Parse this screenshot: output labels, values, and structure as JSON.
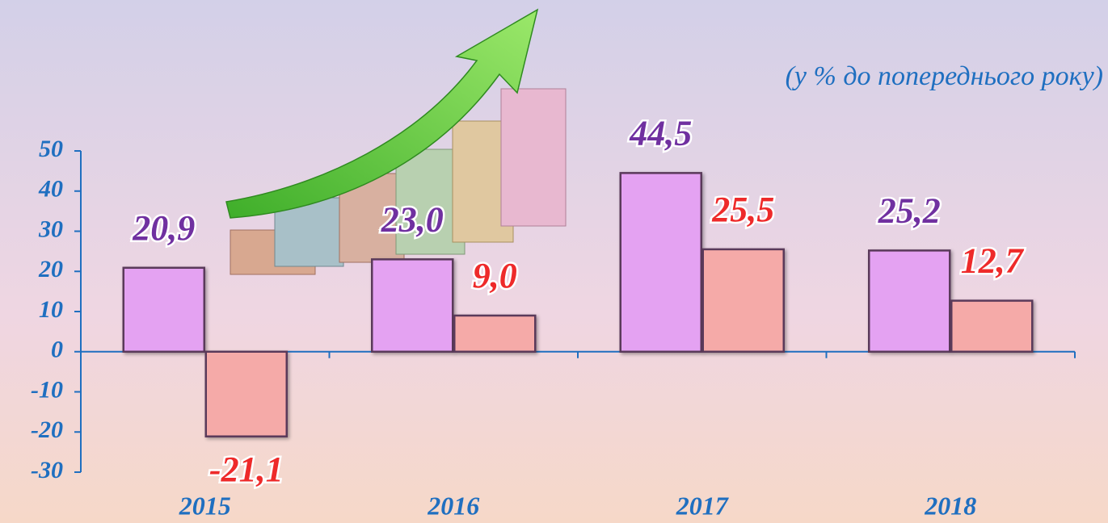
{
  "chart_data": {
    "type": "bar",
    "subtitle": "(у % до попереднього року)",
    "categories": [
      "2015",
      "2016",
      "2017",
      "2018"
    ],
    "series": [
      {
        "color": "#e4a2f2",
        "label_color": "#7030a0",
        "values": [
          20.9,
          23.0,
          44.5,
          25.2
        ],
        "value_labels": [
          "20,9",
          "23,0",
          "44,5",
          "25,2"
        ]
      },
      {
        "color": "#f5aaa8",
        "label_color": "#ee2a2a",
        "values": [
          -21.1,
          9.0,
          25.5,
          12.7
        ],
        "value_labels": [
          "-21,1",
          "9,0",
          "25,5",
          "12,7"
        ]
      }
    ],
    "ylim": [
      -30,
      50
    ],
    "yticks": [
      -30,
      -20,
      -10,
      0,
      10,
      20,
      30,
      40,
      50
    ],
    "axis_color": "#1f6fc0"
  }
}
